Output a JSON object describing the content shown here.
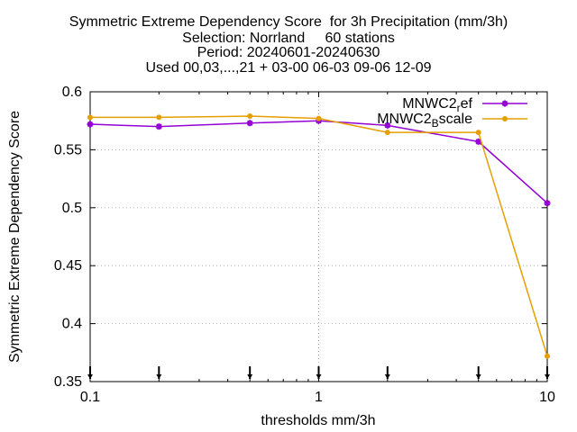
{
  "chart_data": {
    "type": "line",
    "title_lines": [
      "Symmetric Extreme Dependency Score  for 3h Precipitation (mm/3h)",
      "Selection: Norrland     60 stations",
      "Period: 20240601-20240630",
      "Used 00,03,...,21 + 03-00 06-03 09-06 12-09"
    ],
    "xlabel": "thresholds mm/3h",
    "ylabel": "Symmetric Extreme Dependency Score",
    "x_scale": "log",
    "xlim": [
      0.1,
      10
    ],
    "ylim": [
      0.35,
      0.6
    ],
    "x_ticks": [
      0.1,
      1,
      10
    ],
    "x_tick_labels": [
      "0.1",
      "1",
      "10"
    ],
    "y_ticks": [
      0.35,
      0.4,
      0.45,
      0.5,
      0.55,
      0.6
    ],
    "y_tick_labels": [
      "0.35",
      "0.4",
      "0.45",
      "0.5",
      "0.55",
      "0.6"
    ],
    "grid": true,
    "legend_position": "top-right",
    "threshold_markers_x": [
      0.1,
      0.2,
      0.5,
      1,
      2,
      5,
      10
    ],
    "x": [
      0.1,
      0.2,
      0.5,
      1,
      2,
      5,
      10
    ],
    "series": [
      {
        "name_main": "MNWC2",
        "name_sub": "r",
        "name_tail": "ef",
        "color": "#9400d3",
        "values": [
          0.572,
          0.57,
          0.573,
          0.575,
          0.571,
          0.557,
          0.504
        ]
      },
      {
        "name_main": "MNWC2",
        "name_sub": "B",
        "name_tail": "scale",
        "color": "#e69f00",
        "values": [
          0.578,
          0.578,
          0.579,
          0.577,
          0.565,
          0.565,
          0.372
        ]
      }
    ]
  }
}
